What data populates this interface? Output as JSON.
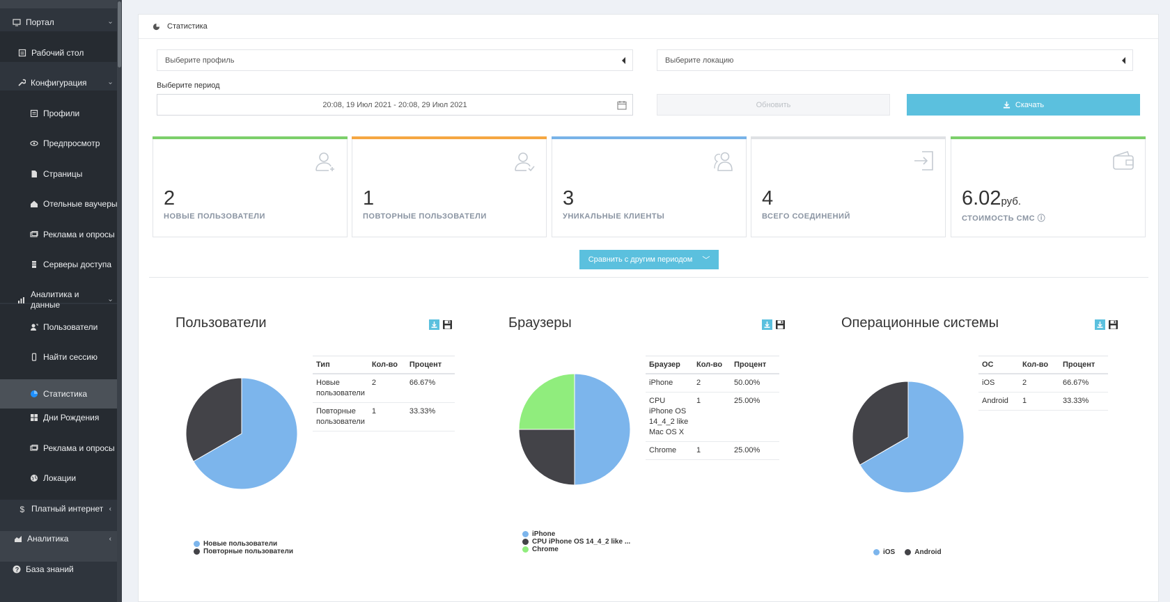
{
  "sidebar": {
    "items": [
      {
        "label": "Портал",
        "icon": "monitor-icon",
        "chev": "‹"
      },
      {
        "label": "Рабочий стол",
        "icon": "desktop-icon"
      },
      {
        "label": "Конфигурация",
        "icon": "wrench-icon",
        "chev": "‹"
      },
      {
        "label": "Профили",
        "icon": "profile-icon"
      },
      {
        "label": "Предпросмотр",
        "icon": "eye-icon"
      },
      {
        "label": "Страницы",
        "icon": "page-icon"
      },
      {
        "label": "Отельные ваучеры",
        "icon": "home-icon"
      },
      {
        "label": "Реклама и опросы",
        "icon": "ads-icon"
      },
      {
        "label": "Серверы доступа",
        "icon": "server-icon"
      },
      {
        "label": "Аналитика и данные",
        "icon": "bar-chart-icon",
        "chev": "‹"
      },
      {
        "label": "Пользователи",
        "icon": "user-icon"
      },
      {
        "label": "Найти сессию",
        "icon": "mobile-icon"
      },
      {
        "label": "Статистика",
        "icon": "pie-icon"
      },
      {
        "label": "Дни Рождения",
        "icon": "gift-icon"
      },
      {
        "label": "Реклама и опросы",
        "icon": "ads-icon"
      },
      {
        "label": "Локации",
        "icon": "globe-icon"
      },
      {
        "label": "Платный интернет",
        "icon": "dollar-icon",
        "chev": "‹"
      },
      {
        "label": "Аналитика",
        "icon": "area-chart-icon",
        "chev": "‹"
      },
      {
        "label": "База знаний",
        "icon": "question-icon"
      }
    ]
  },
  "panel": {
    "title": "Статистика"
  },
  "filters": {
    "profile_placeholder": "Выберите профиль",
    "location_placeholder": "Выберите локацию",
    "period_label": "Выберите период",
    "period_value": "20:08, 19 Июл 2021 - 20:08, 29 Июл 2021",
    "update_label": "Обновить",
    "download_label": "Скачать"
  },
  "stats": [
    {
      "value": "2",
      "unit": "",
      "caption": "НОВЫЕ ПОЛЬЗОВАТЕЛИ",
      "color": "#7ccf6b",
      "icon": "user-add-icon"
    },
    {
      "value": "1",
      "unit": "",
      "caption": "ПОВТОРНЫЕ ПОЛЬЗОВАТЕЛИ",
      "color": "#f5a742",
      "icon": "user-check-icon"
    },
    {
      "value": "3",
      "unit": "",
      "caption": "УНИКАЛЬНЫЕ КЛИЕНТЫ",
      "color": "#78b3e8",
      "icon": "users-icon"
    },
    {
      "value": "4",
      "unit": "",
      "caption": "ВСЕГО СОЕДИНЕНИЙ",
      "color": "#dfe1e4",
      "icon": "sign-in-icon"
    },
    {
      "value": "6.02",
      "unit": "руб.",
      "caption": "СТОИМОСТЬ СМС ⓘ",
      "color": "#7ccf6b",
      "icon": "wallet-icon"
    }
  ],
  "compare_label": "Сравнить с другим периодом",
  "charts": [
    {
      "title": "Пользователи",
      "columns": [
        "Тип",
        "Кол-во",
        "Процент"
      ],
      "rows": [
        [
          "Новые пользователи",
          "2",
          "66.67%"
        ],
        [
          "Повторные пользователи",
          "1",
          "33.33%"
        ]
      ],
      "legend": [
        "Новые пользователи",
        "Повторные пользователи"
      ]
    },
    {
      "title": "Браузеры",
      "columns": [
        "Браузер",
        "Кол-во",
        "Процент"
      ],
      "rows": [
        [
          "iPhone",
          "2",
          "50.00%"
        ],
        [
          "CPU iPhone OS 14_4_2 like Mac OS X",
          "1",
          "25.00%"
        ],
        [
          "Chrome",
          "1",
          "25.00%"
        ]
      ],
      "legend": [
        "iPhone",
        "CPU iPhone OS 14_4_2 like ...",
        "Chrome"
      ]
    },
    {
      "title": "Операционные системы",
      "columns": [
        "ОС",
        "Кол-во",
        "Процент"
      ],
      "rows": [
        [
          "iOS",
          "2",
          "66.67%"
        ],
        [
          "Android",
          "1",
          "33.33%"
        ]
      ],
      "legend": [
        "iOS",
        "Android"
      ]
    }
  ],
  "chart_data": [
    {
      "type": "pie",
      "categories": [
        "Новые пользователи",
        "Повторные пользователи"
      ],
      "values": [
        2,
        1
      ],
      "colors": [
        "#7cb5ec",
        "#434348"
      ]
    },
    {
      "type": "pie",
      "categories": [
        "iPhone",
        "CPU iPhone OS 14_4_2 like Mac OS X",
        "Chrome"
      ],
      "values": [
        2,
        1,
        1
      ],
      "colors": [
        "#7cb5ec",
        "#434348",
        "#90ed7d"
      ]
    },
    {
      "type": "pie",
      "categories": [
        "iOS",
        "Android"
      ],
      "values": [
        2,
        1
      ],
      "colors": [
        "#7cb5ec",
        "#434348"
      ]
    }
  ]
}
